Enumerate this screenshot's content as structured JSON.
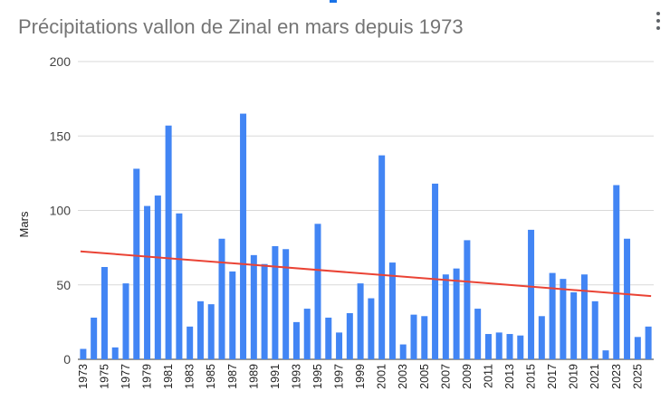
{
  "title": "Précipitations vallon de Zinal en mars depuis 1973",
  "menu_icon": "more-vert-icon",
  "chart_data": {
    "type": "bar",
    "title": "Précipitations vallon de Zinal en mars depuis 1973",
    "xlabel": "",
    "ylabel": "Mars",
    "ylim": [
      0,
      200
    ],
    "yticks": [
      0,
      50,
      100,
      150,
      200
    ],
    "grid": true,
    "bar_color": "#4285f4",
    "trend_color": "#ea4335",
    "years": [
      1973,
      1974,
      1975,
      1976,
      1977,
      1978,
      1979,
      1980,
      1981,
      1982,
      1983,
      1984,
      1985,
      1986,
      1987,
      1988,
      1989,
      1990,
      1991,
      1992,
      1993,
      1994,
      1995,
      1996,
      1997,
      1998,
      1999,
      2000,
      2001,
      2002,
      2003,
      2004,
      2005,
      2006,
      2007,
      2008,
      2009,
      2010,
      2011,
      2012,
      2013,
      2014,
      2015,
      2016,
      2017,
      2018,
      2019,
      2020,
      2021,
      2022,
      2023,
      2024,
      2025,
      2026
    ],
    "xtick_labels": [
      "1973",
      "1975",
      "1977",
      "1979",
      "1981",
      "1983",
      "1985",
      "1987",
      "1989",
      "1991",
      "1993",
      "1995",
      "1997",
      "1999",
      "2001",
      "2003",
      "2005",
      "2007",
      "2009",
      "2011",
      "2013",
      "2015",
      "2017",
      "2019",
      "2021",
      "2023",
      "2025"
    ],
    "values": [
      7,
      28,
      62,
      8,
      51,
      128,
      103,
      110,
      157,
      98,
      22,
      39,
      37,
      81,
      59,
      165,
      70,
      64,
      76,
      74,
      25,
      34,
      91,
      28,
      18,
      31,
      51,
      41,
      137,
      65,
      10,
      30,
      29,
      118,
      57,
      61,
      80,
      34,
      17,
      18,
      17,
      16,
      87,
      29,
      58,
      54,
      45,
      57,
      39,
      6,
      117,
      81,
      15,
      22
    ],
    "trendline": {
      "start": 72.5,
      "end": 42.5
    }
  }
}
